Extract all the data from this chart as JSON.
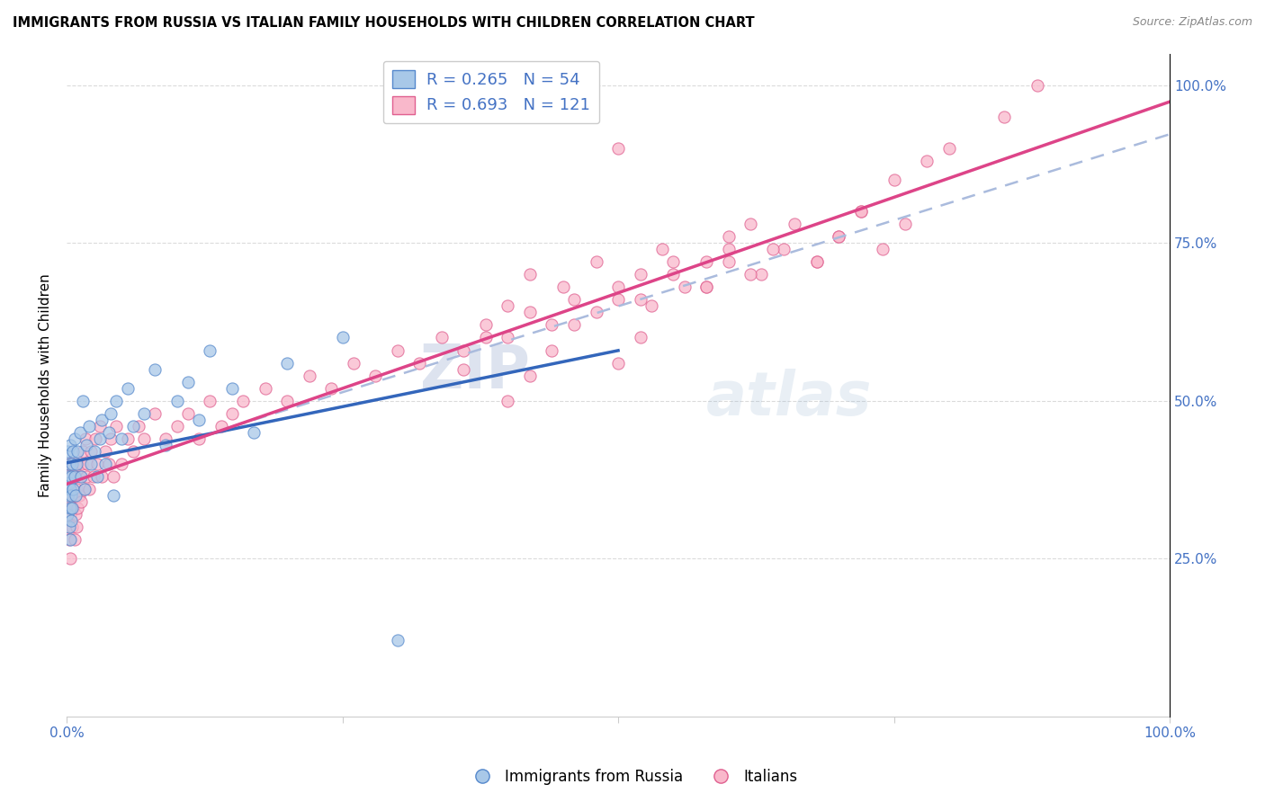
{
  "title": "IMMIGRANTS FROM RUSSIA VS ITALIAN FAMILY HOUSEHOLDS WITH CHILDREN CORRELATION CHART",
  "source": "Source: ZipAtlas.com",
  "ylabel": "Family Households with Children",
  "watermark_zip": "ZIP",
  "watermark_atlas": "atlas",
  "legend_labels": [
    "Immigrants from Russia",
    "Italians"
  ],
  "r_blue": 0.265,
  "n_blue": 54,
  "r_pink": 0.693,
  "n_pink": 121,
  "blue_fill": "#a8c8e8",
  "pink_fill": "#f9b8cb",
  "blue_edge": "#5588cc",
  "pink_edge": "#e06090",
  "blue_line": "#3366bb",
  "pink_line": "#dd4488",
  "dash_line": "#aabbdd",
  "axis_color": "#4472c4",
  "grid_color": "#cccccc",
  "blue_x": [
    0.001,
    0.001,
    0.001,
    0.001,
    0.002,
    0.002,
    0.002,
    0.003,
    0.003,
    0.003,
    0.003,
    0.004,
    0.004,
    0.004,
    0.005,
    0.005,
    0.006,
    0.006,
    0.007,
    0.007,
    0.008,
    0.009,
    0.01,
    0.012,
    0.013,
    0.015,
    0.016,
    0.018,
    0.02,
    0.022,
    0.025,
    0.028,
    0.03,
    0.032,
    0.035,
    0.038,
    0.04,
    0.042,
    0.045,
    0.05,
    0.055,
    0.06,
    0.07,
    0.08,
    0.09,
    0.1,
    0.11,
    0.12,
    0.13,
    0.15,
    0.17,
    0.2,
    0.25,
    0.3
  ],
  "blue_y": [
    0.38,
    0.35,
    0.32,
    0.42,
    0.3,
    0.37,
    0.4,
    0.33,
    0.36,
    0.28,
    0.43,
    0.35,
    0.38,
    0.31,
    0.4,
    0.33,
    0.42,
    0.36,
    0.38,
    0.44,
    0.35,
    0.4,
    0.42,
    0.45,
    0.38,
    0.5,
    0.36,
    0.43,
    0.46,
    0.4,
    0.42,
    0.38,
    0.44,
    0.47,
    0.4,
    0.45,
    0.48,
    0.35,
    0.5,
    0.44,
    0.52,
    0.46,
    0.48,
    0.55,
    0.43,
    0.5,
    0.53,
    0.47,
    0.58,
    0.52,
    0.45,
    0.56,
    0.6,
    0.12
  ],
  "pink_x": [
    0.001,
    0.001,
    0.001,
    0.002,
    0.002,
    0.002,
    0.003,
    0.003,
    0.003,
    0.004,
    0.004,
    0.005,
    0.005,
    0.006,
    0.006,
    0.007,
    0.007,
    0.008,
    0.008,
    0.009,
    0.009,
    0.01,
    0.01,
    0.011,
    0.012,
    0.013,
    0.014,
    0.015,
    0.016,
    0.017,
    0.018,
    0.019,
    0.02,
    0.022,
    0.024,
    0.026,
    0.028,
    0.03,
    0.032,
    0.035,
    0.038,
    0.04,
    0.042,
    0.045,
    0.05,
    0.055,
    0.06,
    0.065,
    0.07,
    0.08,
    0.09,
    0.1,
    0.11,
    0.12,
    0.13,
    0.14,
    0.15,
    0.16,
    0.18,
    0.2,
    0.22,
    0.24,
    0.26,
    0.28,
    0.3,
    0.32,
    0.34,
    0.36,
    0.38,
    0.4,
    0.42,
    0.44,
    0.46,
    0.48,
    0.5,
    0.52,
    0.55,
    0.58,
    0.6,
    0.63,
    0.65,
    0.68,
    0.7,
    0.5,
    0.52,
    0.53,
    0.55,
    0.58,
    0.6,
    0.62,
    0.4,
    0.42,
    0.44,
    0.46,
    0.72,
    0.75,
    0.78,
    0.8,
    0.85,
    0.88,
    0.5,
    0.36,
    0.38,
    0.4,
    0.42,
    0.45,
    0.48,
    0.5,
    0.52,
    0.54,
    0.56,
    0.58,
    0.6,
    0.62,
    0.64,
    0.66,
    0.68,
    0.7,
    0.72,
    0.74,
    0.76
  ],
  "pink_y": [
    0.33,
    0.38,
    0.3,
    0.35,
    0.28,
    0.4,
    0.32,
    0.36,
    0.25,
    0.34,
    0.38,
    0.3,
    0.36,
    0.33,
    0.4,
    0.28,
    0.35,
    0.32,
    0.38,
    0.3,
    0.36,
    0.33,
    0.4,
    0.35,
    0.38,
    0.34,
    0.4,
    0.42,
    0.36,
    0.44,
    0.38,
    0.4,
    0.36,
    0.42,
    0.38,
    0.44,
    0.4,
    0.46,
    0.38,
    0.42,
    0.4,
    0.44,
    0.38,
    0.46,
    0.4,
    0.44,
    0.42,
    0.46,
    0.44,
    0.48,
    0.44,
    0.46,
    0.48,
    0.44,
    0.5,
    0.46,
    0.48,
    0.5,
    0.52,
    0.5,
    0.54,
    0.52,
    0.56,
    0.54,
    0.58,
    0.56,
    0.6,
    0.58,
    0.62,
    0.6,
    0.64,
    0.62,
    0.66,
    0.64,
    0.68,
    0.66,
    0.7,
    0.68,
    0.72,
    0.7,
    0.74,
    0.72,
    0.76,
    0.56,
    0.6,
    0.65,
    0.72,
    0.68,
    0.74,
    0.78,
    0.5,
    0.54,
    0.58,
    0.62,
    0.8,
    0.85,
    0.88,
    0.9,
    0.95,
    1.0,
    0.9,
    0.55,
    0.6,
    0.65,
    0.7,
    0.68,
    0.72,
    0.66,
    0.7,
    0.74,
    0.68,
    0.72,
    0.76,
    0.7,
    0.74,
    0.78,
    0.72,
    0.76,
    0.8,
    0.74,
    0.78
  ]
}
